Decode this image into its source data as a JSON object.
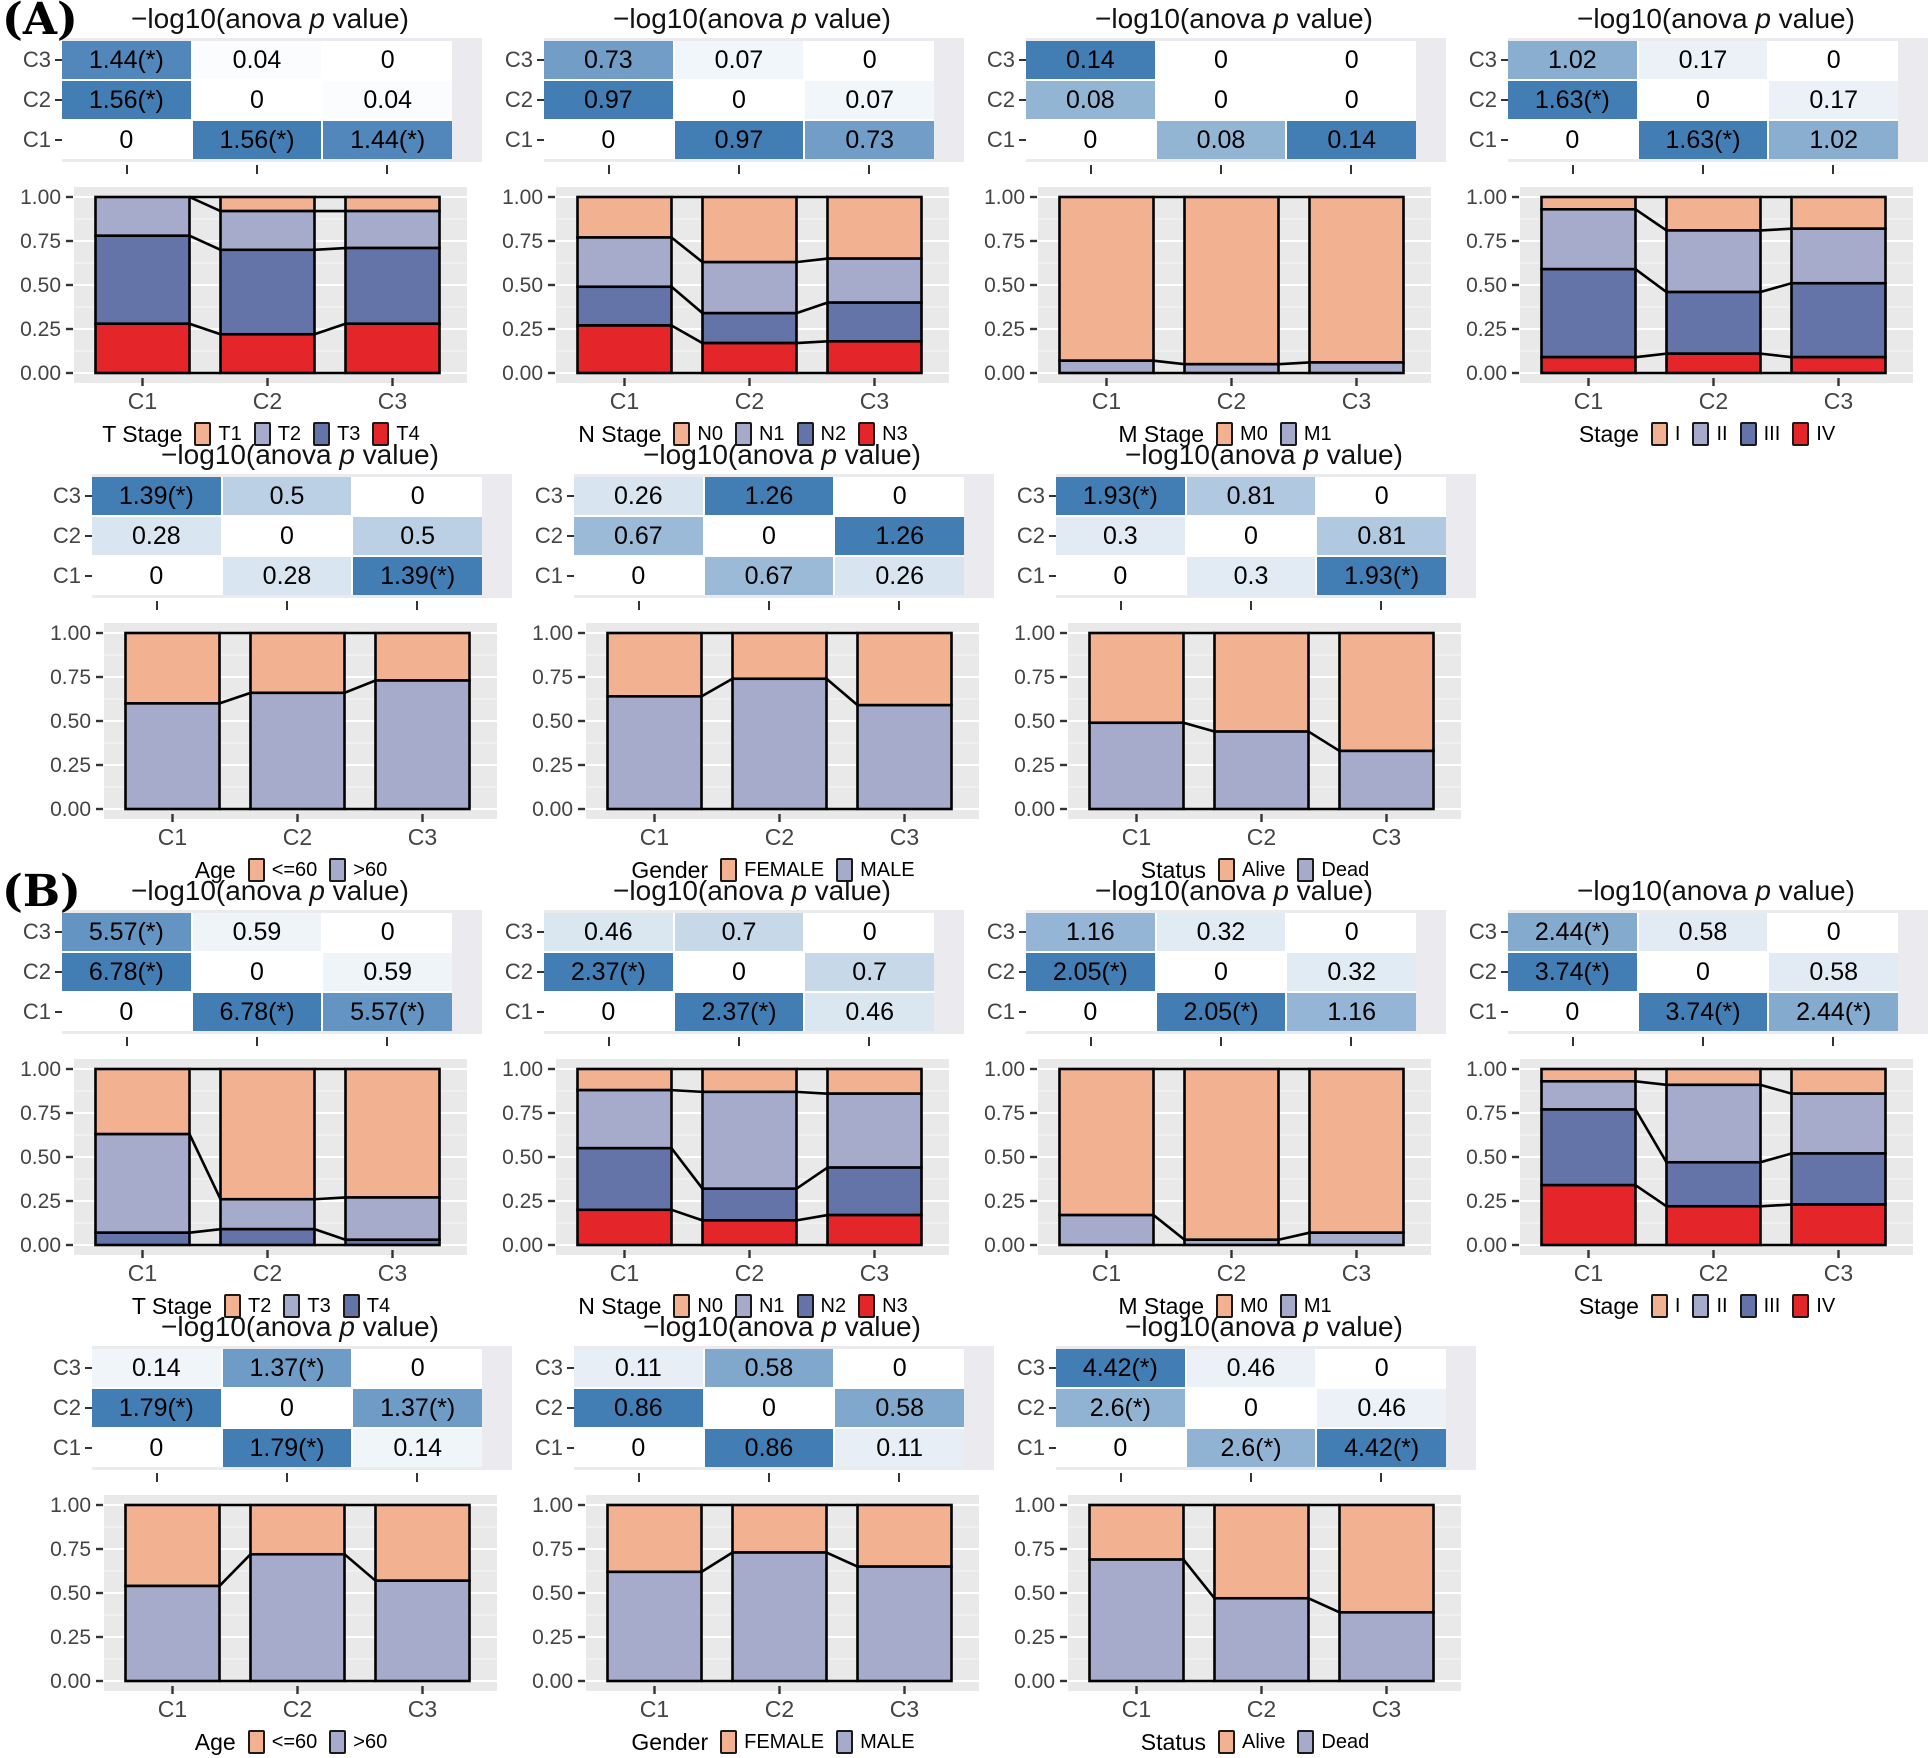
{
  "colors": {
    "salmon": "#F2B190",
    "lightblue": "#A6ABCB",
    "darkblue": "#6474A9",
    "red": "#E4252A",
    "heat_max": "#427DB4",
    "panel_bg": "#E9E9E9",
    "grid_major": "#FFFFFF",
    "grid_minor": "#F3F3F3",
    "hm_bg": "#EBEBEF",
    "axis_text": "#444444",
    "outline": "#000000"
  },
  "chart_data": {
    "type": "bar",
    "subtype": "stacked-proportion-bars-with-pairwise-anova-heatmaps",
    "panel_title": "−log10(anova p value)",
    "y_ticks": [
      "1.00",
      "0.75",
      "0.50",
      "0.25",
      "0.00"
    ],
    "ylim": [
      0,
      1
    ],
    "clusters": [
      "C1",
      "C2",
      "C3"
    ],
    "heatmap_rows": [
      "C3",
      "C2",
      "C1"
    ],
    "sections": [
      {
        "label": "(A)",
        "panels": [
          {
            "legend_title": "T Stage",
            "categories": [
              "T1",
              "T2",
              "T3",
              "T4"
            ],
            "heatmap": [
              [
                "1.44(*)",
                "0.04",
                "0"
              ],
              [
                "1.56(*)",
                "0",
                "0.04"
              ],
              [
                "0",
                "1.56(*)",
                "1.44(*)"
              ]
            ],
            "stacks": [
              [
                0.0,
                0.22,
                0.5,
                0.28
              ],
              [
                0.08,
                0.22,
                0.48,
                0.22
              ],
              [
                0.08,
                0.21,
                0.43,
                0.28
              ]
            ]
          },
          {
            "legend_title": "N Stage",
            "categories": [
              "N0",
              "N1",
              "N2",
              "N3"
            ],
            "heatmap": [
              [
                "0.73",
                "0.07",
                "0"
              ],
              [
                "0.97",
                "0",
                "0.07"
              ],
              [
                "0",
                "0.97",
                "0.73"
              ]
            ],
            "stacks": [
              [
                0.23,
                0.28,
                0.22,
                0.27
              ],
              [
                0.37,
                0.29,
                0.17,
                0.17
              ],
              [
                0.35,
                0.25,
                0.22,
                0.18
              ]
            ]
          },
          {
            "legend_title": "M Stage",
            "categories": [
              "M0",
              "M1"
            ],
            "heatmap": [
              [
                "0.14",
                "0",
                "0"
              ],
              [
                "0.08",
                "0",
                "0"
              ],
              [
                "0",
                "0.08",
                "0.14"
              ]
            ],
            "stacks": [
              [
                0.93,
                0.07
              ],
              [
                0.95,
                0.05
              ],
              [
                0.94,
                0.06
              ]
            ]
          },
          {
            "legend_title": "Stage",
            "categories": [
              "I",
              "II",
              "III",
              "IV"
            ],
            "heatmap": [
              [
                "1.02",
                "0.17",
                "0"
              ],
              [
                "1.63(*)",
                "0",
                "0.17"
              ],
              [
                "0",
                "1.63(*)",
                "1.02"
              ]
            ],
            "stacks": [
              [
                0.07,
                0.34,
                0.5,
                0.09
              ],
              [
                0.19,
                0.35,
                0.35,
                0.11
              ],
              [
                0.18,
                0.31,
                0.42,
                0.09
              ]
            ]
          },
          {
            "legend_title": "Age",
            "categories": [
              "<=60",
              ">60"
            ],
            "heatmap": [
              [
                "1.39(*)",
                "0.5",
                "0"
              ],
              [
                "0.28",
                "0",
                "0.5"
              ],
              [
                "0",
                "0.28",
                "1.39(*)"
              ]
            ],
            "stacks": [
              [
                0.4,
                0.6
              ],
              [
                0.34,
                0.66
              ],
              [
                0.27,
                0.73
              ]
            ]
          },
          {
            "legend_title": "Gender",
            "categories": [
              "FEMALE",
              "MALE"
            ],
            "heatmap": [
              [
                "0.26",
                "1.26",
                "0"
              ],
              [
                "0.67",
                "0",
                "1.26"
              ],
              [
                "0",
                "0.67",
                "0.26"
              ]
            ],
            "stacks": [
              [
                0.36,
                0.64
              ],
              [
                0.26,
                0.74
              ],
              [
                0.41,
                0.59
              ]
            ]
          },
          {
            "legend_title": "Status",
            "categories": [
              "Alive",
              "Dead"
            ],
            "heatmap": [
              [
                "1.93(*)",
                "0.81",
                "0"
              ],
              [
                "0.3",
                "0",
                "0.81"
              ],
              [
                "0",
                "0.3",
                "1.93(*)"
              ]
            ],
            "stacks": [
              [
                0.51,
                0.49
              ],
              [
                0.56,
                0.44
              ],
              [
                0.67,
                0.33
              ]
            ]
          }
        ]
      },
      {
        "label": "(B)",
        "panels": [
          {
            "legend_title": "T Stage",
            "categories": [
              "T2",
              "T3",
              "T4"
            ],
            "heatmap": [
              [
                "5.57(*)",
                "0.59",
                "0"
              ],
              [
                "6.78(*)",
                "0",
                "0.59"
              ],
              [
                "0",
                "6.78(*)",
                "5.57(*)"
              ]
            ],
            "stacks": [
              [
                0.37,
                0.56,
                0.07
              ],
              [
                0.74,
                0.17,
                0.09
              ],
              [
                0.73,
                0.24,
                0.03
              ]
            ]
          },
          {
            "legend_title": "N Stage",
            "categories": [
              "N0",
              "N1",
              "N2",
              "N3"
            ],
            "heatmap": [
              [
                "0.46",
                "0.7",
                "0"
              ],
              [
                "2.37(*)",
                "0",
                "0.7"
              ],
              [
                "0",
                "2.37(*)",
                "0.46"
              ]
            ],
            "stacks": [
              [
                0.12,
                0.33,
                0.35,
                0.2
              ],
              [
                0.13,
                0.55,
                0.18,
                0.14
              ],
              [
                0.14,
                0.42,
                0.27,
                0.17
              ]
            ]
          },
          {
            "legend_title": "M Stage",
            "categories": [
              "M0",
              "M1"
            ],
            "heatmap": [
              [
                "1.16",
                "0.32",
                "0"
              ],
              [
                "2.05(*)",
                "0",
                "0.32"
              ],
              [
                "0",
                "2.05(*)",
                "1.16"
              ]
            ],
            "stacks": [
              [
                0.83,
                0.17
              ],
              [
                0.97,
                0.03
              ],
              [
                0.93,
                0.07
              ]
            ]
          },
          {
            "legend_title": "Stage",
            "categories": [
              "I",
              "II",
              "III",
              "IV"
            ],
            "heatmap": [
              [
                "2.44(*)",
                "0.58",
                "0"
              ],
              [
                "3.74(*)",
                "0",
                "0.58"
              ],
              [
                "0",
                "3.74(*)",
                "2.44(*)"
              ]
            ],
            "stacks": [
              [
                0.07,
                0.16,
                0.43,
                0.34
              ],
              [
                0.09,
                0.44,
                0.25,
                0.22
              ],
              [
                0.14,
                0.34,
                0.29,
                0.23
              ]
            ]
          },
          {
            "legend_title": "Age",
            "categories": [
              "<=60",
              ">60"
            ],
            "heatmap": [
              [
                "0.14",
                "1.37(*)",
                "0"
              ],
              [
                "1.79(*)",
                "0",
                "1.37(*)"
              ],
              [
                "0",
                "1.79(*)",
                "0.14"
              ]
            ],
            "stacks": [
              [
                0.46,
                0.54
              ],
              [
                0.28,
                0.72
              ],
              [
                0.43,
                0.57
              ]
            ]
          },
          {
            "legend_title": "Gender",
            "categories": [
              "FEMALE",
              "MALE"
            ],
            "heatmap": [
              [
                "0.11",
                "0.58",
                "0"
              ],
              [
                "0.86",
                "0",
                "0.58"
              ],
              [
                "0",
                "0.86",
                "0.11"
              ]
            ],
            "stacks": [
              [
                0.38,
                0.62
              ],
              [
                0.27,
                0.73
              ],
              [
                0.35,
                0.65
              ]
            ]
          },
          {
            "legend_title": "Status",
            "categories": [
              "Alive",
              "Dead"
            ],
            "heatmap": [
              [
                "4.42(*)",
                "0.46",
                "0"
              ],
              [
                "2.6(*)",
                "0",
                "0.46"
              ],
              [
                "0",
                "2.6(*)",
                "4.42(*)"
              ]
            ],
            "stacks": [
              [
                0.31,
                0.69
              ],
              [
                0.53,
                0.47
              ],
              [
                0.61,
                0.39
              ]
            ]
          }
        ]
      }
    ]
  }
}
